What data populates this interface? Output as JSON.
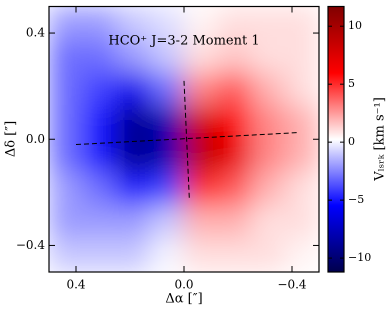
{
  "chart_data": {
    "type": "image",
    "title": "HCO⁺ J=3-2 Moment 1",
    "xlabel": "Δα [″]",
    "ylabel": "Δδ [″]",
    "xlim": [
      0.5,
      -0.5
    ],
    "ylim": [
      -0.5,
      0.5
    ],
    "xticks": [
      0.4,
      {
        "value": 0.0,
        "label": "0.0"
      },
      {
        "value": -0.4,
        "label": "−0.4"
      }
    ],
    "yticks": [
      0.4,
      {
        "value": 0.0,
        "label": "0.0"
      },
      {
        "value": -0.4,
        "label": "−0.4"
      }
    ],
    "z": [
      [
        -2,
        -2,
        -1,
        -0.5,
        0.5,
        1,
        1,
        1
      ],
      [
        -3,
        -3,
        -2,
        -1,
        1,
        1.5,
        1,
        1
      ],
      [
        -3,
        -4,
        -6,
        -3,
        3,
        4,
        2,
        1
      ],
      [
        -3,
        -5,
        -9,
        -8,
        8,
        6,
        3,
        2
      ],
      [
        -3,
        -5,
        -9,
        -8,
        9,
        7,
        3,
        2
      ],
      [
        -2,
        -3,
        -5,
        -4,
        5,
        4,
        2,
        1
      ],
      [
        -2,
        -2,
        -2,
        -1,
        2,
        2,
        1,
        1
      ],
      [
        -1,
        -1,
        -1,
        0,
        1,
        1,
        1,
        0.5
      ]
    ],
    "colormap_colors": [
      "#00004c",
      "#0000ff",
      "#ffffff",
      "#ff0000",
      "#800000"
    ],
    "colorbar_label": "Vₗₛᵣₖ [km s⁻¹]",
    "clim": [
      -11.2,
      11.7
    ],
    "cticks": [
      {
        "value": -10,
        "label": "−10"
      },
      {
        "value": -5,
        "label": "−5"
      },
      0,
      5,
      10
    ],
    "lines": [
      {
        "x": [
          0.4,
          -0.42
        ],
        "y": [
          -0.02,
          0.025
        ]
      },
      {
        "x": [
          0.0,
          -0.02
        ],
        "y": [
          0.22,
          -0.23
        ]
      }
    ]
  }
}
